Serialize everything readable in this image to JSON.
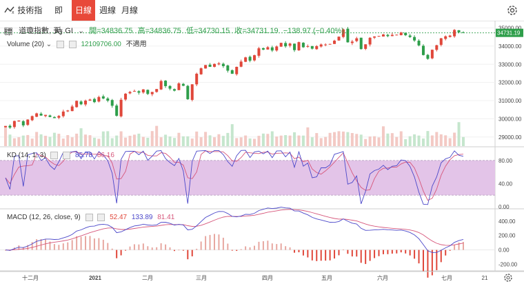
{
  "toolbar": {
    "indicators_label": "技術指標",
    "timeframes": [
      {
        "label": "即時",
        "active": false
      },
      {
        "label": "日線",
        "active": true
      },
      {
        "label": "週線",
        "active": false
      },
      {
        "label": "月線",
        "active": false
      }
    ]
  },
  "legend": {
    "symbol": "道瓊指數, 天, GI",
    "open": "開=34836.75",
    "high": "高=34836.75",
    "low": "低=34730.15",
    "close": "收=34731.19",
    "change": "−138.97 (−0.40%)",
    "volume_label": "Volume (20)",
    "volume_value": "12109706.00",
    "volume_na": "不適用"
  },
  "kd_legend": {
    "label": "KD (14, 1, 3)",
    "k": "85.78",
    "d": "86.16"
  },
  "macd_legend": {
    "label": "MACD (12, 26, close, 9)",
    "v1": "52.47",
    "v2": "133.89",
    "v3": "81.41"
  },
  "price_axis": {
    "ticks": [
      "35000.00",
      "34000.00",
      "33000.00",
      "32000.00",
      "31000.00",
      "30000.00",
      "29000.00"
    ],
    "current": "34731.19"
  },
  "kd_axis": {
    "ticks": [
      "80.00",
      "40.00",
      "0.00"
    ]
  },
  "macd_axis": {
    "ticks": [
      "400.00",
      "200.00",
      "0.00",
      "-200.00"
    ]
  },
  "x_axis": {
    "labels": [
      "十二月",
      "2021",
      "二月",
      "三月",
      "四月",
      "五月",
      "六月",
      "七月",
      "21"
    ]
  },
  "colors": {
    "up": "#e0473a",
    "down": "#2e9e4a",
    "k_line": "#4a47c9",
    "d_line": "#d6557a",
    "kd_band": "#e3c4e8",
    "active_tab": "#e8493a"
  },
  "chart_data": {
    "type": "candlestick",
    "price_range": [
      28500,
      35400
    ],
    "close_series": [
      29600,
      29520,
      29880,
      29910,
      29640,
      29960,
      30150,
      30300,
      30180,
      30220,
      30100,
      30040,
      30160,
      30400,
      30460,
      30680,
      30990,
      30800,
      31000,
      31060,
      30920,
      31200,
      31120,
      31000,
      30720,
      30170,
      31050,
      31380,
      31480,
      31530,
      31440,
      31620,
      31370,
      31480,
      31640,
      32080,
      31800,
      31660,
      31550,
      31950,
      31820,
      31080,
      31900,
      32480,
      32780,
      32960,
      32860,
      33020,
      33050,
      32900,
      32650,
      32480,
      32860,
      33150,
      33380,
      33200,
      33500,
      33880,
      33810,
      33940,
      33760,
      33980,
      34180,
      33990,
      34140,
      33780,
      34220,
      33940,
      34000,
      33860,
      34000,
      34090,
      34090,
      34120,
      34300,
      34520,
      34920,
      34210,
      34250,
      34430,
      33840,
      34100,
      34460,
      34530,
      34560,
      34640,
      34550,
      34620,
      34630,
      34750,
      34600,
      34500,
      34310,
      34040,
      33510,
      33300,
      33800,
      34050,
      34430,
      34540,
      34580,
      34890,
      34760,
      34730
    ]
  }
}
